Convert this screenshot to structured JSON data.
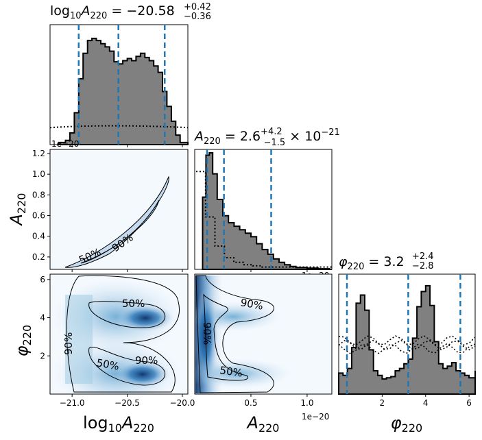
{
  "figure": {
    "parameters": [
      "log10A220",
      "A220",
      "phi220"
    ]
  },
  "chart_data": [
    {
      "type": "area",
      "panel": "marginal-log10A220",
      "title": "log10A220 = −20.58 +0.42 −0.36",
      "x": [
        -21.12,
        -21.06,
        -21.02,
        -20.98,
        -20.94,
        -20.9,
        -20.86,
        -20.82,
        -20.78,
        -20.74,
        -20.7,
        -20.66,
        -20.62,
        -20.58,
        -20.54,
        -20.5,
        -20.46,
        -20.42,
        -20.38,
        -20.34,
        -20.3,
        -20.26,
        -20.22,
        -20.18,
        -20.14,
        -20.1,
        -20.06,
        -20.02
      ],
      "y": [
        0.02,
        0.04,
        0.11,
        0.3,
        0.62,
        0.86,
        0.98,
        1.0,
        0.98,
        0.95,
        0.92,
        0.88,
        0.78,
        0.76,
        0.79,
        0.81,
        0.79,
        0.83,
        0.86,
        0.82,
        0.79,
        0.74,
        0.68,
        0.5,
        0.36,
        0.22,
        0.09,
        0.02
      ],
      "prior_level": 0.16,
      "quantiles": [
        -20.94,
        -20.58,
        -20.16
      ],
      "xlim": [
        -21.2,
        -19.95
      ]
    },
    {
      "type": "area",
      "panel": "marginal-A220",
      "title": "A220 = 2.6 +4.2 −1.5 × 10−21",
      "x": [
        0.07,
        0.1,
        0.13,
        0.16,
        0.2,
        0.25,
        0.3,
        0.35,
        0.4,
        0.45,
        0.5,
        0.55,
        0.6,
        0.65,
        0.7,
        0.75,
        0.8,
        0.85,
        0.9,
        1.0,
        1.1,
        1.2
      ],
      "y": [
        0.62,
        0.98,
        1.0,
        0.82,
        0.6,
        0.46,
        0.4,
        0.37,
        0.34,
        0.31,
        0.28,
        0.22,
        0.17,
        0.13,
        0.09,
        0.06,
        0.04,
        0.025,
        0.015,
        0.01,
        0.005,
        0.0
      ],
      "prior": [
        0.84,
        0.45,
        0.2,
        0.1,
        0.06,
        0.04,
        0.03,
        0.02
      ],
      "quantiles": [
        0.11,
        0.26,
        0.68
      ],
      "offset_label": "1e−20",
      "xlim": [
        0.0,
        1.22
      ]
    },
    {
      "type": "area",
      "panel": "marginal-phi220",
      "title": "φ220 = 3.2 +2.4 −2.8",
      "x": [
        0.0,
        0.2,
        0.4,
        0.6,
        0.8,
        1.0,
        1.2,
        1.4,
        1.6,
        1.8,
        2.0,
        2.2,
        2.4,
        2.6,
        2.8,
        3.0,
        3.2,
        3.4,
        3.6,
        3.8,
        4.0,
        4.2,
        4.4,
        4.6,
        4.8,
        5.0,
        5.2,
        5.4,
        5.6,
        5.8,
        6.0,
        6.28
      ],
      "y": [
        0.18,
        0.16,
        0.22,
        0.4,
        0.78,
        0.85,
        0.72,
        0.38,
        0.2,
        0.16,
        0.13,
        0.14,
        0.15,
        0.2,
        0.22,
        0.26,
        0.3,
        0.48,
        0.75,
        0.88,
        0.93,
        0.76,
        0.45,
        0.26,
        0.22,
        0.24,
        0.27,
        0.2,
        0.18,
        0.16,
        0.14,
        0.2
      ],
      "prior_level": 0.42,
      "quantiles": [
        0.38,
        3.2,
        5.6
      ],
      "xticks": [
        2,
        4,
        6
      ],
      "xlim": [
        0.0,
        6.28
      ]
    },
    {
      "type": "heatmap",
      "panel": "joint-log10A220-A220",
      "x_axis": "log10A220",
      "y_axis": "A220",
      "contour_levels": [
        "50%",
        "90%"
      ],
      "yticks": [
        0.2,
        0.4,
        0.6,
        0.8,
        1.0,
        1.2
      ],
      "offset_label": "1e−20",
      "ylim": [
        0.08,
        1.24
      ]
    },
    {
      "type": "heatmap",
      "panel": "joint-log10A220-phi220",
      "x_axis": "log10A220",
      "y_axis": "phi220",
      "contour_levels": [
        "50%",
        "50%",
        "90%",
        "90%"
      ],
      "xticks": [
        -21.0,
        -20.5,
        -20.0
      ],
      "yticks": [
        2,
        4,
        6
      ],
      "ylim": [
        0.0,
        6.28
      ]
    },
    {
      "type": "heatmap",
      "panel": "joint-A220-phi220",
      "x_axis": "A220",
      "y_axis": "phi220",
      "contour_levels": [
        "90%",
        "50%",
        "90%"
      ],
      "xticks": [
        0.5,
        1.0
      ],
      "offset_label": "1e−20",
      "xlim": [
        0.0,
        1.22
      ]
    }
  ],
  "labels": {
    "log10A220_title_main": "log",
    "log10A220_title_sub1": "10",
    "log10A220_title_A": "A",
    "log10A220_title_sub2": "220",
    "log10A220_title_val": " = −20.58",
    "log10A220_title_sup": "+0.42",
    "log10A220_title_subv": "−0.36",
    "A220_title_A": "A",
    "A220_title_sub": "220",
    "A220_title_val": " = 2.6",
    "A220_title_sup": "+4.2",
    "A220_title_subv": "−1.5",
    "A220_title_times": " × 10",
    "A220_title_exp": "−21",
    "phi220_title_phi": "φ",
    "phi220_title_sub": "220",
    "phi220_title_val": " = 3.2",
    "phi220_title_sup": "+2.4",
    "phi220_title_subv": "−2.8",
    "y_A": "A",
    "y_A_sub": "220",
    "y_phi": "φ",
    "y_phi_sub": "220",
    "x_log": "log",
    "x_log_sub": "10",
    "x_A": "A",
    "x_A_sub": "220",
    "x_A2": "A",
    "x_A2_sub": "220",
    "x_phi": "φ",
    "x_phi_sub": "220",
    "offset_1e20": "1e−20",
    "pct50": "50%",
    "pct90": "90%"
  },
  "colors": {
    "hist_fill": "#808080",
    "quantile_line": "#1f77b4",
    "density_light": "#eef5fc",
    "density_dark": "#08306b"
  }
}
